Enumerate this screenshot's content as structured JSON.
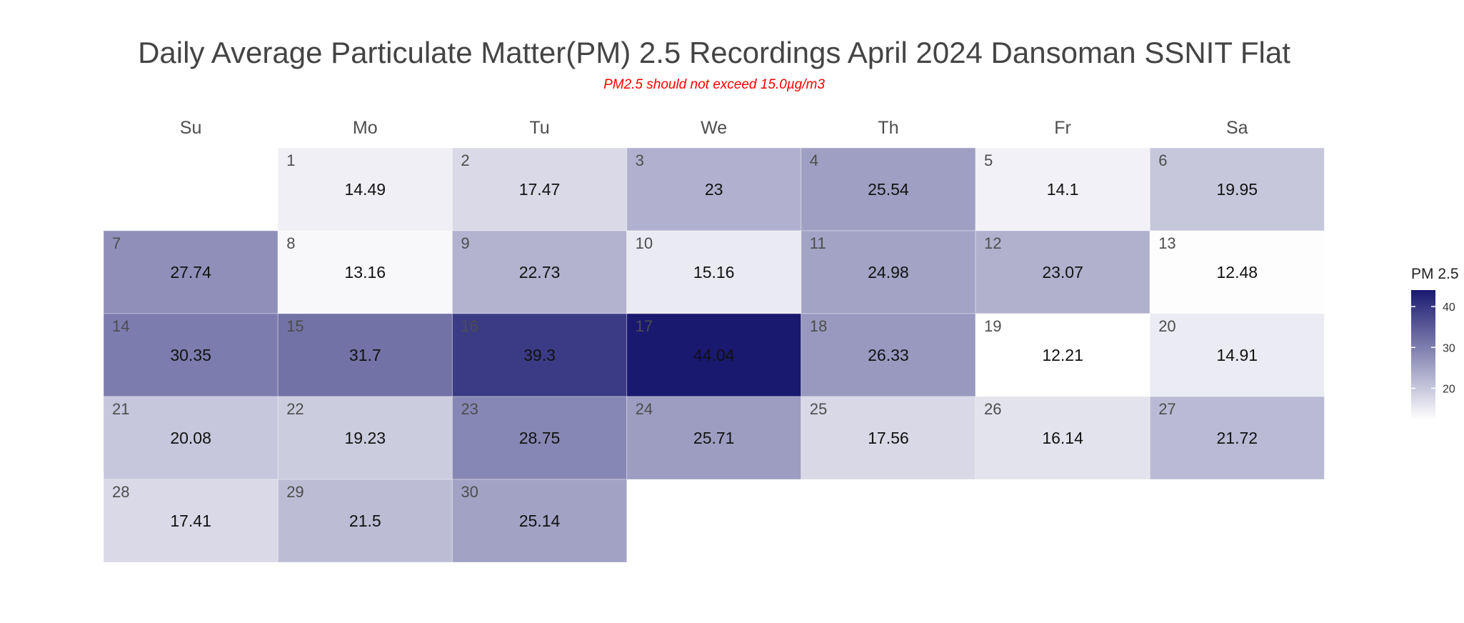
{
  "chart_data": {
    "type": "heatmap",
    "title": "Daily Average Particulate Matter(PM) 2.5 Recordings April 2024 Dansoman SSNIT Flat",
    "subtitle": "PM2.5 should not exceed 15.0µg/m3",
    "weekdays": [
      "Su",
      "Mo",
      "Tu",
      "We",
      "Th",
      "Fr",
      "Sa"
    ],
    "first_weekday_index": 1,
    "days": [
      1,
      2,
      3,
      4,
      5,
      6,
      7,
      8,
      9,
      10,
      11,
      12,
      13,
      14,
      15,
      16,
      17,
      18,
      19,
      20,
      21,
      22,
      23,
      24,
      25,
      26,
      27,
      28,
      29,
      30
    ],
    "values": [
      14.49,
      17.47,
      23,
      25.54,
      14.1,
      19.95,
      27.74,
      13.16,
      22.73,
      15.16,
      24.98,
      23.07,
      12.48,
      30.35,
      31.7,
      39.3,
      44.04,
      26.33,
      12.21,
      14.91,
      20.08,
      19.23,
      28.75,
      25.71,
      17.56,
      16.14,
      21.72,
      17.41,
      21.5,
      25.14
    ],
    "value_labels": [
      "14.49",
      "17.47",
      "23",
      "25.54",
      "14.1",
      "19.95",
      "27.74",
      "13.16",
      "22.73",
      "15.16",
      "24.98",
      "23.07",
      "12.48",
      "30.35",
      "31.7",
      "39.3",
      "44.04",
      "26.33",
      "12.21",
      "14.91",
      "20.08",
      "19.23",
      "28.75",
      "25.71",
      "17.56",
      "16.14",
      "21.72",
      "17.41",
      "21.5",
      "25.14"
    ],
    "color_scale": {
      "low": "#ffffff",
      "high": "#191970",
      "domain": [
        12.21,
        44.04
      ]
    },
    "legend": {
      "title": "PM 2.5",
      "ticks": [
        20,
        30,
        40
      ],
      "tick_labels": [
        "20",
        "30",
        "40"
      ],
      "position": "right"
    }
  }
}
